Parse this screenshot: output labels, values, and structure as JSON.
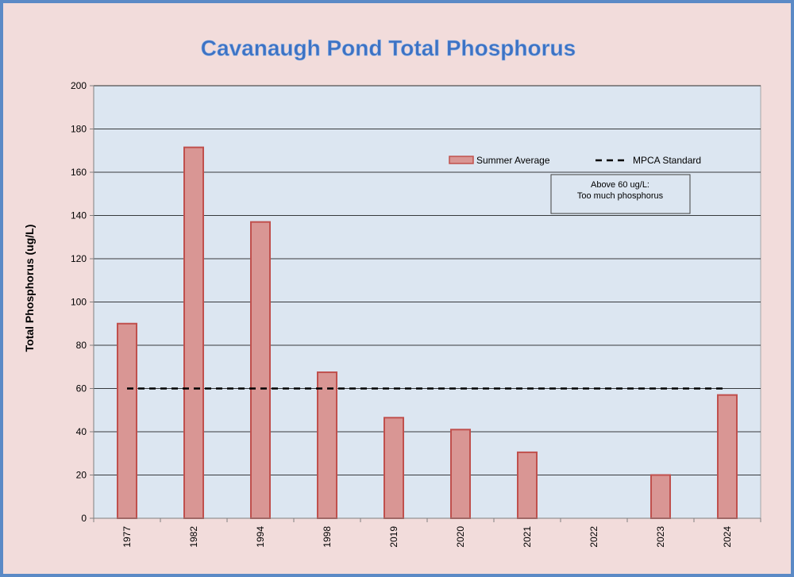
{
  "colors": {
    "frame_background": "#f2dcdb",
    "frame_border": "#5b8ac6",
    "plot_background": "#dce6f1",
    "bar_fill": "#d99694",
    "bar_stroke": "#c0504d",
    "title": "#3d72c4",
    "standard_line": "#000000"
  },
  "chart_data": {
    "type": "bar",
    "title": "Cavanaugh Pond Total Phosphorus",
    "xlabel": "",
    "ylabel": "Total Phosphorus (ug/L)",
    "ylim": [
      0,
      200
    ],
    "yticks": [
      0,
      20,
      40,
      60,
      80,
      100,
      120,
      140,
      160,
      180,
      200
    ],
    "grid": true,
    "legend_position": "top-right",
    "categories": [
      "1977",
      "1982",
      "1994",
      "1998",
      "2019",
      "2020",
      "2021",
      "2022",
      "2023",
      "2024"
    ],
    "series": [
      {
        "name": "Summer Average",
        "type": "bar",
        "values": [
          90,
          171.5,
          137,
          67.5,
          46.5,
          41,
          30.5,
          null,
          20,
          57
        ]
      },
      {
        "name": "MPCA Standard",
        "type": "line",
        "style": "dashed",
        "values": [
          60,
          60,
          60,
          60,
          60,
          60,
          60,
          60,
          60,
          60
        ]
      }
    ],
    "annotation": {
      "lines": [
        "Above 60 ug/L:",
        "Too much phosphorus"
      ]
    }
  }
}
